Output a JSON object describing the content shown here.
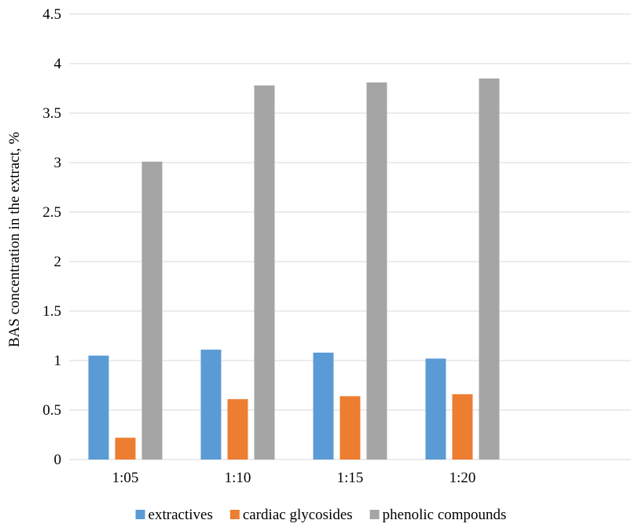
{
  "chart_data": {
    "type": "bar",
    "title": "",
    "xlabel": "",
    "ylabel": "BAS concentration in the extract, %",
    "categories": [
      "1:05",
      "1:10",
      "1:15",
      "1:20"
    ],
    "series": [
      {
        "name": "extractives",
        "color": "#5b9bd5",
        "values": [
          1.05,
          1.11,
          1.08,
          1.02
        ]
      },
      {
        "name": "cardiac glycosides",
        "color": "#ed7d31",
        "values": [
          0.22,
          0.61,
          0.64,
          0.66
        ]
      },
      {
        "name": "phenolic compounds",
        "color": "#a5a5a5",
        "values": [
          3.01,
          3.78,
          3.81,
          3.85
        ]
      }
    ],
    "ylim": [
      0,
      4.5
    ],
    "yticks": [
      "0",
      "0.5",
      "1",
      "1.5",
      "2",
      "2.5",
      "3",
      "3.5",
      "4",
      "4.5"
    ],
    "grid": true,
    "legend_position": "bottom",
    "gridline_color": "#d9d9d9"
  }
}
